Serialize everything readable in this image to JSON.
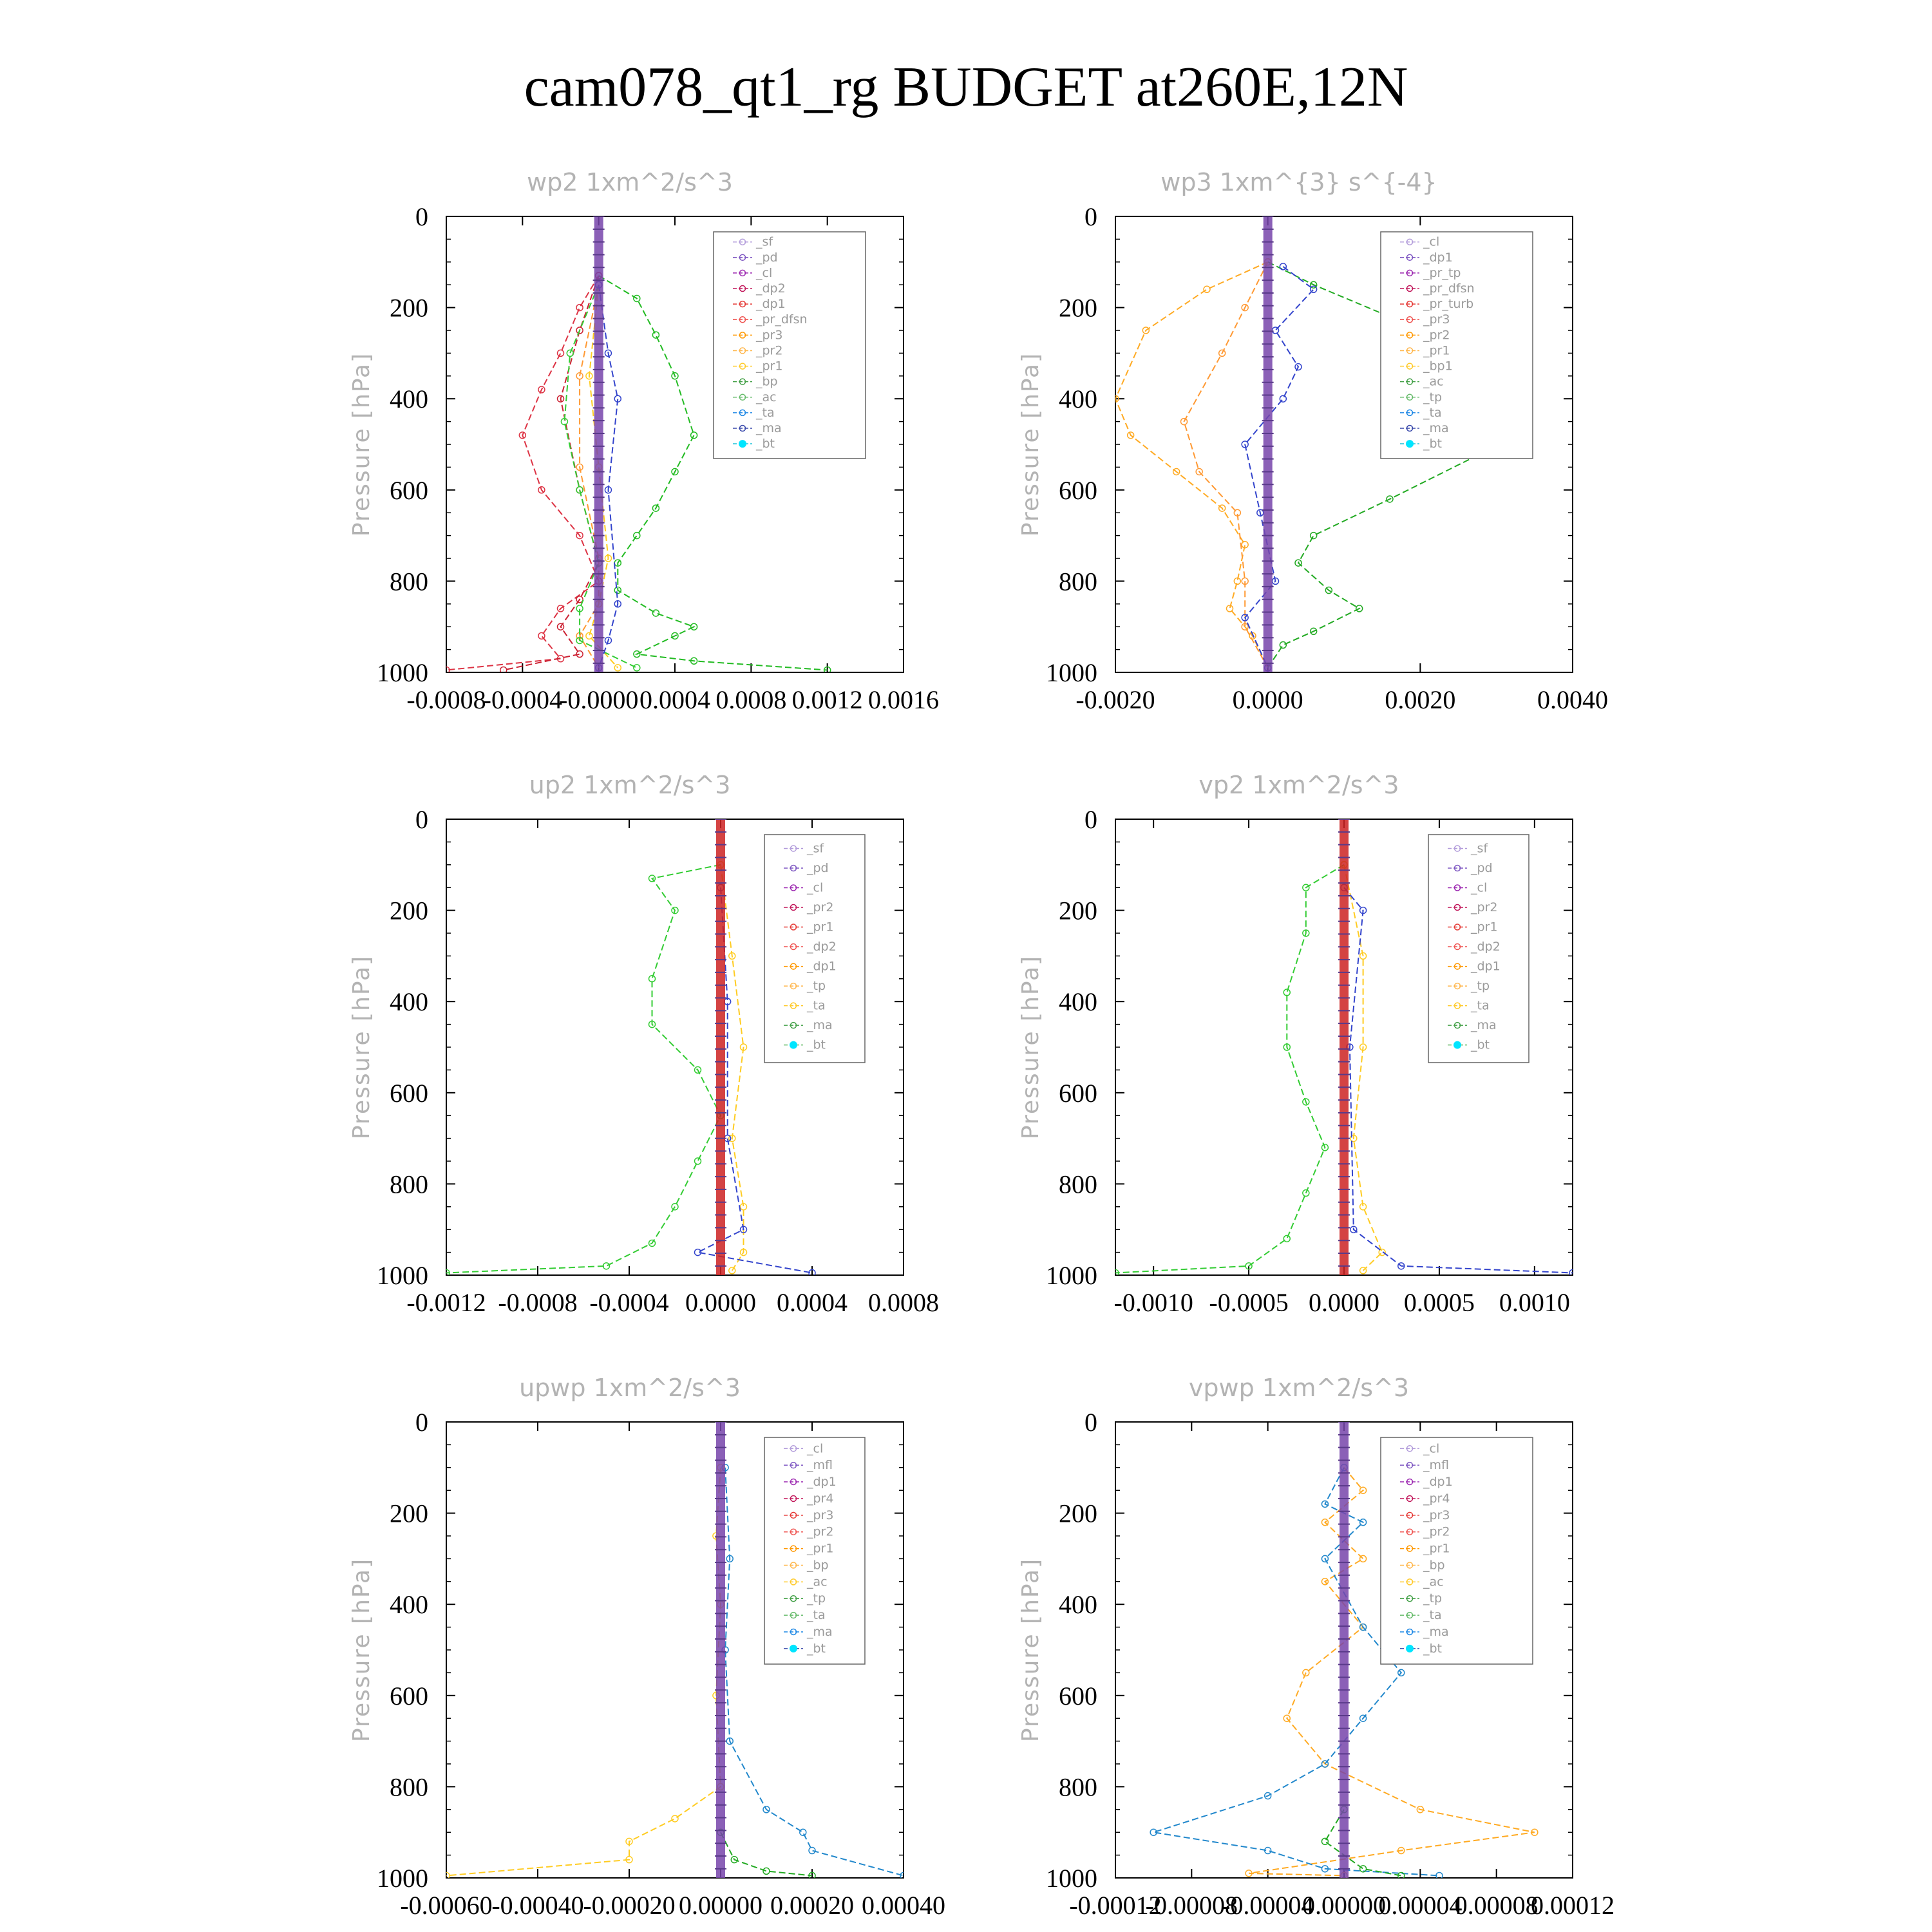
{
  "page_title": "cam078_qt1_rg  BUDGET at260E,12N",
  "chart_data": [
    {
      "type": "line",
      "title": "wp2   1xm^2/s^3",
      "ylabel": "Pressure [hPa]",
      "xlim": [
        -0.0008,
        0.0016
      ],
      "ylim": [
        1000,
        0
      ],
      "xticks": [
        "-0.0008",
        "-0.0004",
        "-0.0000",
        "0.0004",
        "0.0008",
        "0.0012",
        "0.0016"
      ],
      "xtick_values": [
        -0.0008,
        -0.0004,
        0,
        0.0004,
        0.0008,
        0.0012,
        0.0016
      ],
      "yticks": [
        "0",
        "200",
        "400",
        "600",
        "800",
        "1000"
      ],
      "legend": [
        "_sf",
        "_pd",
        "_cl",
        "_dp2",
        "_dp1",
        "_pr_dfsn",
        "_pr3",
        "_pr2",
        "_pr1",
        "_bp",
        "_ac",
        "_ta",
        "_ma",
        "_bt"
      ],
      "series": [
        {
          "name": "_bp",
          "color": "#22bb22",
          "x": [
            0,
            0.0002,
            0.0003,
            0.0004,
            0.0005,
            0.0004,
            0.0003,
            0.0002,
            0.0001,
            0.0001,
            0.0003,
            0.0005,
            0.0004,
            0.0002,
            0.0005,
            0.0012
          ],
          "y": [
            130,
            180,
            260,
            350,
            480,
            560,
            640,
            700,
            760,
            820,
            870,
            900,
            920,
            960,
            975,
            995
          ]
        },
        {
          "name": "_dp1",
          "color": "#dd3344",
          "x": [
            0,
            -0.0001,
            -0.0002,
            -0.0003,
            -0.0004,
            -0.0003,
            -0.0001,
            0,
            -0.0002,
            -0.0003,
            -0.0002,
            -0.0008
          ],
          "y": [
            130,
            200,
            300,
            380,
            480,
            600,
            700,
            800,
            860,
            920,
            970,
            995
          ]
        },
        {
          "name": "_dp2",
          "color": "#cc2233",
          "x": [
            0,
            -0.0001,
            -0.0002,
            -0.0001,
            0,
            -0.0001,
            -0.0002,
            -0.0001,
            -0.0005
          ],
          "y": [
            130,
            250,
            400,
            600,
            760,
            840,
            900,
            960,
            995
          ]
        },
        {
          "name": "_pr3",
          "color": "#ff9933",
          "x": [
            0,
            -0.0001,
            -0.0001,
            0,
            0,
            -0.0001,
            0
          ],
          "y": [
            150,
            350,
            550,
            750,
            850,
            920,
            990
          ]
        },
        {
          "name": "_pr2",
          "color": "#ffcc22",
          "x": [
            0,
            -5e-05,
            0,
            5e-05,
            0,
            -5e-05,
            0.0001
          ],
          "y": [
            150,
            350,
            550,
            750,
            850,
            920,
            990
          ]
        },
        {
          "name": "_pr1",
          "color": "#33cc33",
          "x": [
            0,
            -0.00015,
            -0.00018,
            -0.0001,
            0,
            -0.0001,
            -0.0001,
            0.0002
          ],
          "y": [
            150,
            300,
            450,
            600,
            760,
            860,
            930,
            990
          ]
        },
        {
          "name": "_ta",
          "color": "#3344cc",
          "x": [
            0,
            5e-05,
            0.0001,
            5e-05,
            0.0001,
            5e-05,
            0
          ],
          "y": [
            150,
            300,
            400,
            600,
            850,
            930,
            990
          ]
        },
        {
          "name": "_bt",
          "color": "#7744aa",
          "x": [
            0,
            0
          ],
          "y": [
            0,
            1000
          ]
        }
      ]
    },
    {
      "type": "line",
      "title": "wp3   1xm^{3} s^{-4}",
      "ylabel": "Pressure [hPa]",
      "xlim": [
        -0.002,
        0.004
      ],
      "ylim": [
        1000,
        0
      ],
      "xticks": [
        "-0.0020",
        "0.0000",
        "0.0020",
        "0.0040"
      ],
      "xtick_values": [
        -0.002,
        0,
        0.002,
        0.004
      ],
      "yticks": [
        "0",
        "200",
        "400",
        "600",
        "800",
        "1000"
      ],
      "legend": [
        "_cl",
        "_dp1",
        "_pr_tp",
        "_pr_dfsn",
        "_pr_turb",
        "_pr3",
        "_pr2",
        "_pr1",
        "_bp1",
        "_ac",
        "_tp",
        "_ta",
        "_ma",
        "_bt"
      ],
      "series": [
        {
          "name": "_bp1",
          "color": "#22aa22",
          "x": [
            0,
            0.0006,
            0.0016,
            0.0028,
            0.0033,
            0.0028,
            0.0016,
            0.0006,
            0.0004,
            0.0008,
            0.0012,
            0.0006,
            0.0002,
            0
          ],
          "y": [
            100,
            150,
            220,
            330,
            420,
            520,
            620,
            700,
            760,
            820,
            860,
            910,
            940,
            990
          ]
        },
        {
          "name": "_pr1",
          "color": "#ffaa22",
          "x": [
            0,
            -0.0008,
            -0.0016,
            -0.002,
            -0.0018,
            -0.0012,
            -0.0006,
            -0.0003,
            -0.0004,
            -0.0005,
            -0.0002,
            0
          ],
          "y": [
            100,
            160,
            250,
            400,
            480,
            560,
            640,
            720,
            800,
            860,
            920,
            990
          ]
        },
        {
          "name": "_pr2",
          "color": "#ff9933",
          "x": [
            0,
            -0.0003,
            -0.0006,
            -0.0011,
            -0.0009,
            -0.0004,
            -0.0003,
            -0.0003,
            0
          ],
          "y": [
            100,
            200,
            300,
            450,
            560,
            650,
            800,
            900,
            990
          ]
        },
        {
          "name": "_ta",
          "color": "#3344cc",
          "x": [
            0.0002,
            0.0006,
            0.0001,
            0.0004,
            0.0002,
            -0.0003,
            -0.0001,
            0.0001,
            -0.0003,
            0
          ],
          "y": [
            110,
            160,
            250,
            330,
            400,
            500,
            650,
            800,
            880,
            990
          ]
        },
        {
          "name": "_bt",
          "color": "#7744aa",
          "x": [
            0,
            0
          ],
          "y": [
            0,
            1000
          ]
        }
      ]
    },
    {
      "type": "line",
      "title": "up2   1xm^2/s^3",
      "ylabel": "Pressure [hPa]",
      "xlim": [
        -0.0012,
        0.0008
      ],
      "ylim": [
        1000,
        0
      ],
      "xticks": [
        "-0.0012",
        "-0.0008",
        "-0.0004",
        "0.0000",
        "0.0004",
        "0.0008"
      ],
      "xtick_values": [
        -0.0012,
        -0.0008,
        -0.0004,
        0,
        0.0004,
        0.0008
      ],
      "yticks": [
        "0",
        "200",
        "400",
        "600",
        "800",
        "1000"
      ],
      "legend": [
        "_sf",
        "_pd",
        "_cl",
        "_pr2",
        "_pr1",
        "_dp2",
        "_dp1",
        "_tp",
        "_ta",
        "_ma",
        "_bt"
      ],
      "series": [
        {
          "name": "_dp1",
          "color": "#33cc33",
          "x": [
            0,
            -0.0003,
            -0.0002,
            -0.0003,
            -0.0003,
            -0.0001,
            0,
            -0.0001,
            -0.0002,
            -0.0003,
            -0.0005,
            -0.0012
          ],
          "y": [
            100,
            130,
            200,
            350,
            450,
            550,
            650,
            750,
            850,
            930,
            980,
            995
          ]
        },
        {
          "name": "_pr1",
          "color": "#ffcc22",
          "x": [
            0,
            5e-05,
            0.0001,
            5e-05,
            0.0001,
            0.0001,
            5e-05
          ],
          "y": [
            100,
            300,
            500,
            700,
            850,
            950,
            990
          ]
        },
        {
          "name": "_ta",
          "color": "#3344cc",
          "x": [
            0,
            3e-05,
            3e-05,
            0.0001,
            -0.0001,
            0.0004
          ],
          "y": [
            150,
            400,
            700,
            900,
            950,
            995
          ]
        },
        {
          "name": "_bt",
          "color": "#cc2222",
          "x": [
            0,
            0
          ],
          "y": [
            0,
            1000
          ]
        }
      ]
    },
    {
      "type": "line",
      "title": "vp2   1xm^2/s^3",
      "ylabel": "Pressure [hPa]",
      "xlim": [
        -0.0012,
        0.0012
      ],
      "ylim": [
        1000,
        0
      ],
      "xticks": [
        "-0.0010",
        "-0.0005",
        "0.0000",
        "0.0005",
        "0.0010"
      ],
      "xtick_values": [
        -0.001,
        -0.0005,
        0,
        0.0005,
        0.001
      ],
      "yticks": [
        "0",
        "200",
        "400",
        "600",
        "800",
        "1000"
      ],
      "legend": [
        "_sf",
        "_pd",
        "_cl",
        "_pr2",
        "_pr1",
        "_dp2",
        "_dp1",
        "_tp",
        "_ta",
        "_ma",
        "_bt"
      ],
      "series": [
        {
          "name": "_dp1",
          "color": "#33cc33",
          "x": [
            0,
            -0.0002,
            -0.0002,
            -0.0003,
            -0.0003,
            -0.0002,
            -0.0001,
            -0.0002,
            -0.0003,
            -0.0005,
            -0.0012
          ],
          "y": [
            100,
            150,
            250,
            380,
            500,
            620,
            720,
            820,
            920,
            980,
            995
          ]
        },
        {
          "name": "_pr1",
          "color": "#ffcc22",
          "x": [
            0,
            0.0001,
            0.0001,
            5e-05,
            0.0001,
            0.0002,
            0.0001
          ],
          "y": [
            100,
            300,
            500,
            700,
            850,
            950,
            990
          ]
        },
        {
          "name": "_ta",
          "color": "#3344cc",
          "x": [
            0,
            0.0001,
            3e-05,
            5e-05,
            0.0003,
            0.0012
          ],
          "y": [
            150,
            200,
            500,
            900,
            980,
            995
          ]
        },
        {
          "name": "_bt",
          "color": "#cc2222",
          "x": [
            0,
            0
          ],
          "y": [
            0,
            1000
          ]
        }
      ]
    },
    {
      "type": "line",
      "title": "upwp   1xm^2/s^3",
      "ylabel": "Pressure [hPa]",
      "xlim": [
        -0.0006,
        0.0004
      ],
      "ylim": [
        1000,
        0
      ],
      "xticks": [
        "-0.00060",
        "-0.00040",
        "-0.00020",
        "0.00000",
        "0.00020",
        "0.00040"
      ],
      "xtick_values": [
        -0.0006,
        -0.0004,
        -0.0002,
        0,
        0.0002,
        0.0004
      ],
      "yticks": [
        "0",
        "200",
        "400",
        "600",
        "800",
        "1000"
      ],
      "legend": [
        "_cl",
        "_mfl",
        "_dp1",
        "_pr4",
        "_pr3",
        "_pr2",
        "_pr1",
        "_bp",
        "_ac",
        "_tp",
        "_ta",
        "_ma",
        "_bt"
      ],
      "series": [
        {
          "name": "_pr1",
          "color": "#ffcc22",
          "x": [
            0,
            -1e-05,
            0,
            -1e-05,
            0,
            -0.0001,
            -0.0002,
            -0.0002,
            -0.0006
          ],
          "y": [
            100,
            250,
            400,
            600,
            800,
            870,
            920,
            960,
            995
          ]
        },
        {
          "name": "_tp",
          "color": "#2288cc",
          "x": [
            1e-05,
            2e-05,
            1e-05,
            2e-05,
            0.0001,
            0.00018,
            0.0002,
            0.0004
          ],
          "y": [
            100,
            300,
            500,
            700,
            850,
            900,
            940,
            995
          ]
        },
        {
          "name": "_bp",
          "color": "#22aa22",
          "x": [
            0,
            3e-05,
            0.0001,
            0.0002
          ],
          "y": [
            900,
            960,
            985,
            995
          ]
        },
        {
          "name": "_bt",
          "color": "#7744aa",
          "x": [
            0,
            0
          ],
          "y": [
            0,
            1000
          ]
        }
      ]
    },
    {
      "type": "line",
      "title": "vpwp   1xm^2/s^3",
      "ylabel": "Pressure [hPa]",
      "xlim": [
        -0.00012,
        0.00012
      ],
      "ylim": [
        1000,
        0
      ],
      "xticks": [
        "-0.00012",
        "-0.00008",
        "-0.00004",
        "0.00000",
        "0.00004",
        "0.00008",
        "0.00012"
      ],
      "xtick_values": [
        -0.00012,
        -8e-05,
        -4e-05,
        0,
        4e-05,
        8e-05,
        0.00012
      ],
      "yticks": [
        "0",
        "200",
        "400",
        "600",
        "800",
        "1000"
      ],
      "legend": [
        "_cl",
        "_mfl",
        "_dp1",
        "_pr4",
        "_pr3",
        "_pr2",
        "_pr1",
        "_bp",
        "_ac",
        "_tp",
        "_ta",
        "_ma",
        "_bt"
      ],
      "series": [
        {
          "name": "_pr1",
          "color": "#ffaa22",
          "x": [
            0,
            1e-05,
            -1e-05,
            1e-05,
            -1e-05,
            1e-05,
            -2e-05,
            -3e-05,
            -1e-05,
            4e-05,
            0.0001,
            3e-05,
            -5e-05,
            0
          ],
          "y": [
            100,
            150,
            220,
            300,
            350,
            450,
            550,
            650,
            750,
            850,
            900,
            940,
            990,
            995
          ]
        },
        {
          "name": "_tp",
          "color": "#2288cc",
          "x": [
            0,
            -1e-05,
            1e-05,
            -1e-05,
            1e-05,
            3e-05,
            1e-05,
            -1e-05,
            -4e-05,
            -0.0001,
            -4e-05,
            -1e-05,
            5e-05
          ],
          "y": [
            100,
            180,
            220,
            300,
            450,
            550,
            650,
            750,
            820,
            900,
            940,
            980,
            995
          ]
        },
        {
          "name": "_bp",
          "color": "#22aa22",
          "x": [
            0,
            -1e-05,
            1e-05,
            3e-05
          ],
          "y": [
            850,
            920,
            980,
            995
          ]
        },
        {
          "name": "_bt",
          "color": "#7744aa",
          "x": [
            0,
            0
          ],
          "y": [
            0,
            1000
          ]
        }
      ]
    }
  ]
}
